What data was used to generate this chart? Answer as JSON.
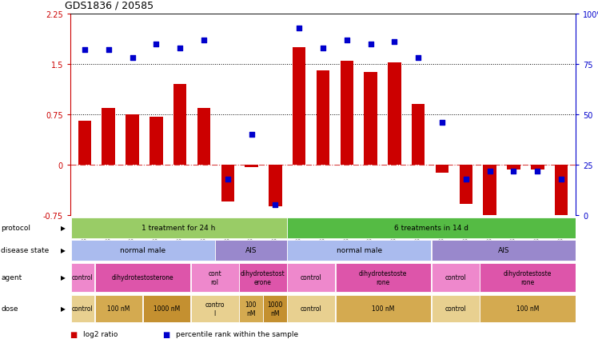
{
  "title": "GDS1836 / 20585",
  "samples": [
    "GSM88440",
    "GSM88442",
    "GSM88422",
    "GSM88438",
    "GSM88423",
    "GSM88441",
    "GSM88429",
    "GSM88435",
    "GSM88439",
    "GSM88424",
    "GSM88431",
    "GSM88436",
    "GSM88426",
    "GSM88432",
    "GSM88434",
    "GSM88427",
    "GSM88430",
    "GSM88437",
    "GSM88425",
    "GSM88428",
    "GSM88433"
  ],
  "log2_ratio": [
    0.65,
    0.85,
    0.75,
    0.72,
    1.2,
    0.85,
    -0.55,
    -0.04,
    -0.62,
    1.75,
    1.4,
    1.55,
    1.38,
    1.52,
    0.9,
    -0.12,
    -0.58,
    -0.82,
    -0.07,
    -0.07,
    -0.85
  ],
  "percentile": [
    82,
    82,
    78,
    85,
    83,
    87,
    18,
    40,
    5,
    93,
    83,
    87,
    85,
    86,
    78,
    46,
    18,
    22,
    22,
    22,
    18
  ],
  "ylim": [
    -0.75,
    2.25
  ],
  "y2lim": [
    0,
    100
  ],
  "yticks_left": [
    -0.75,
    0,
    0.75,
    1.5,
    2.25
  ],
  "yticks_right": [
    0,
    25,
    50,
    75,
    100
  ],
  "hlines": [
    0.75,
    1.5
  ],
  "bar_color": "#cc0000",
  "dot_color": "#0000cc",
  "protocol_groups": [
    {
      "label": "1 treatment for 24 h",
      "start": 0,
      "end": 8,
      "color": "#99cc66"
    },
    {
      "label": "6 treatments in 14 d",
      "start": 9,
      "end": 20,
      "color": "#55bb44"
    }
  ],
  "disease_groups": [
    {
      "label": "normal male",
      "start": 0,
      "end": 5,
      "color": "#aabbee"
    },
    {
      "label": "AIS",
      "start": 6,
      "end": 8,
      "color": "#9988cc"
    },
    {
      "label": "normal male",
      "start": 9,
      "end": 14,
      "color": "#aabbee"
    },
    {
      "label": "AIS",
      "start": 15,
      "end": 20,
      "color": "#9988cc"
    }
  ],
  "agent_groups": [
    {
      "label": "control",
      "start": 0,
      "end": 0,
      "color": "#ee88cc"
    },
    {
      "label": "dihydrotestosterone",
      "start": 1,
      "end": 4,
      "color": "#dd55aa"
    },
    {
      "label": "cont\nrol",
      "start": 5,
      "end": 6,
      "color": "#ee88cc"
    },
    {
      "label": "dihydrotestost\nerone",
      "start": 7,
      "end": 8,
      "color": "#dd55aa"
    },
    {
      "label": "control",
      "start": 9,
      "end": 10,
      "color": "#ee88cc"
    },
    {
      "label": "dihydrotestoste\nrone",
      "start": 11,
      "end": 14,
      "color": "#dd55aa"
    },
    {
      "label": "control",
      "start": 15,
      "end": 16,
      "color": "#ee88cc"
    },
    {
      "label": "dihydrotestoste\nrone",
      "start": 17,
      "end": 20,
      "color": "#dd55aa"
    }
  ],
  "dose_groups": [
    {
      "label": "control",
      "start": 0,
      "end": 0,
      "color": "#e8d090"
    },
    {
      "label": "100 nM",
      "start": 1,
      "end": 2,
      "color": "#d4aa50"
    },
    {
      "label": "1000 nM",
      "start": 3,
      "end": 4,
      "color": "#c49030"
    },
    {
      "label": "contro\nl",
      "start": 5,
      "end": 6,
      "color": "#e8d090"
    },
    {
      "label": "100\nnM",
      "start": 7,
      "end": 7,
      "color": "#d4aa50"
    },
    {
      "label": "1000\nnM",
      "start": 8,
      "end": 8,
      "color": "#c49030"
    },
    {
      "label": "control",
      "start": 9,
      "end": 10,
      "color": "#e8d090"
    },
    {
      "label": "100 nM",
      "start": 11,
      "end": 14,
      "color": "#d4aa50"
    },
    {
      "label": "control",
      "start": 15,
      "end": 16,
      "color": "#e8d090"
    },
    {
      "label": "100 nM",
      "start": 17,
      "end": 20,
      "color": "#d4aa50"
    }
  ],
  "row_labels": [
    "protocol",
    "disease state",
    "agent",
    "dose"
  ],
  "legend": [
    {
      "label": "log2 ratio",
      "color": "#cc0000"
    },
    {
      "label": "percentile rank within the sample",
      "color": "#0000cc"
    }
  ]
}
